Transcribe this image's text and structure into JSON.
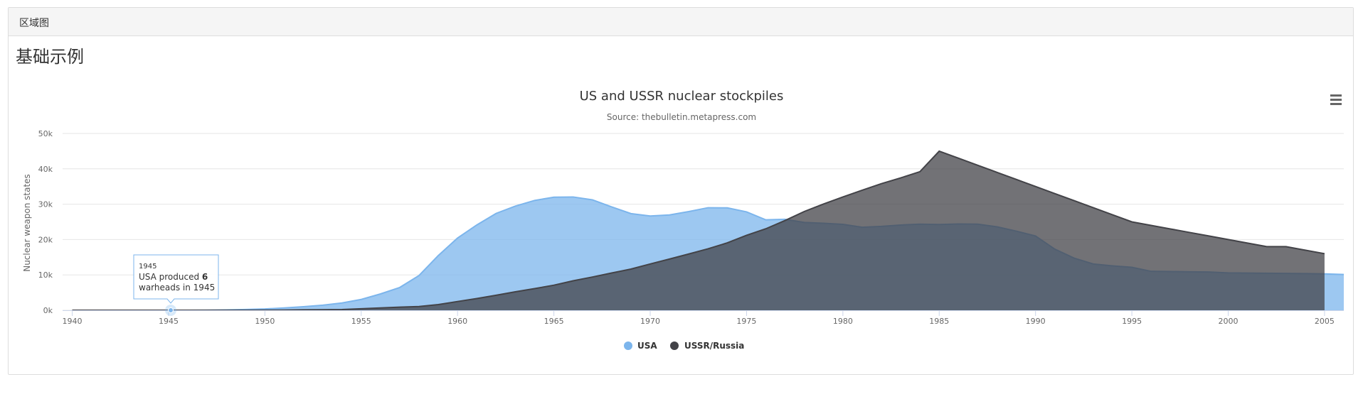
{
  "panel": {
    "heading": "区域图"
  },
  "section": {
    "title": "基础示例"
  },
  "chart_data": {
    "type": "area",
    "title": "US and USSR nuclear stockpiles",
    "subtitle": "Source: thebulletin.metapress.com",
    "ylabel": "Nuclear weapon states",
    "xlabel": "",
    "xlim": [
      1939.5,
      2006
    ],
    "ylim": [
      0,
      50000
    ],
    "x_ticks": [
      1940,
      1945,
      1950,
      1955,
      1960,
      1965,
      1970,
      1975,
      1980,
      1985,
      1990,
      1995,
      2000,
      2005
    ],
    "y_ticks": [
      {
        "value": 0,
        "label": "0k"
      },
      {
        "value": 10000,
        "label": "10k"
      },
      {
        "value": 20000,
        "label": "20k"
      },
      {
        "value": 30000,
        "label": "30k"
      },
      {
        "value": 40000,
        "label": "40k"
      },
      {
        "value": 50000,
        "label": "50k"
      }
    ],
    "grid": true,
    "legend_position": "bottom-center",
    "series": [
      {
        "name": "USA",
        "color": "#7cb5ec",
        "start_year": 1940,
        "values": [
          0,
          0,
          0,
          0,
          0,
          6,
          11,
          32,
          110,
          235,
          369,
          640,
          1005,
          1436,
          2063,
          3057,
          4618,
          6444,
          9822,
          15468,
          20434,
          24126,
          27387,
          29459,
          31056,
          31982,
          32040,
          31233,
          29224,
          27342,
          26662,
          26956,
          27912,
          28999,
          28965,
          27826,
          25579,
          25722,
          24826,
          24605,
          24304,
          23464,
          23708,
          24099,
          24357,
          24237,
          24401,
          24344,
          23586,
          22380,
          21004,
          17287,
          14747,
          13076,
          12555,
          12144,
          11009,
          10950,
          10871,
          10824,
          10577,
          10527,
          10475,
          10421,
          10358,
          10295,
          10104
        ]
      },
      {
        "name": "USSR/Russia",
        "color": "#434348",
        "start_year": 1940,
        "values": [
          0,
          0,
          0,
          0,
          0,
          0,
          0,
          0,
          0,
          5,
          25,
          50,
          120,
          150,
          200,
          426,
          660,
          869,
          1060,
          1605,
          2471,
          3322,
          4238,
          5221,
          6129,
          7089,
          8339,
          9399,
          10538,
          11643,
          13092,
          14478,
          15915,
          17385,
          19055,
          21205,
          23044,
          25393,
          27935,
          30062,
          32049,
          33952,
          35804,
          37431,
          39197,
          45000,
          43000,
          41000,
          39000,
          37000,
          35000,
          33000,
          31000,
          29000,
          27000,
          25000,
          24000,
          23000,
          22000,
          21000,
          20000,
          19000,
          18000,
          18000,
          17000,
          16000
        ]
      }
    ],
    "tooltip": {
      "year": "1945",
      "line1_prefix": "USA produced ",
      "line1_value": "6",
      "line2": "warheads in 1945"
    }
  }
}
